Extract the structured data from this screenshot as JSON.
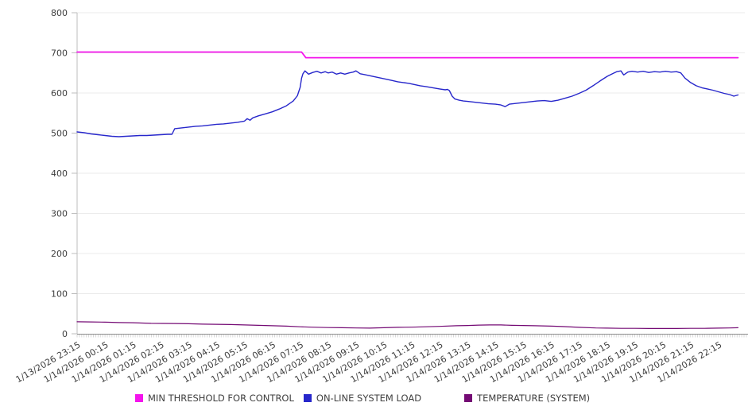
{
  "page": {
    "background": "#ffffff"
  },
  "chart_data": {
    "type": "line",
    "title": "",
    "grid": true,
    "legend_position": "bottom",
    "ylim": [
      0,
      800
    ],
    "y_ticks": [
      0,
      100,
      200,
      300,
      400,
      500,
      600,
      700,
      800
    ],
    "x_axis": {
      "minor_tick_interval_minutes": 5,
      "labels": [
        "1/13/2026 23:15",
        "1/14/2026 00:15",
        "1/14/2026 01:15",
        "1/14/2026 02:15",
        "1/14/2026 03:15",
        "1/14/2026 04:15",
        "1/14/2026 05:15",
        "1/14/2026 06:15",
        "1/14/2026 07:15",
        "1/14/2026 08:15",
        "1/14/2026 09:15",
        "1/14/2026 10:15",
        "1/14/2026 11:15",
        "1/14/2026 12:15",
        "1/14/2026 13:15",
        "1/14/2026 14:15",
        "1/14/2026 15:15",
        "1/14/2026 16:15",
        "1/14/2026 17:15",
        "1/14/2026 18:15",
        "1/14/2026 19:15",
        "1/14/2026 20:15",
        "1/14/2026 21:15",
        "1/14/2026 22:15"
      ]
    },
    "series": [
      {
        "name": "MIN THRESHOLD FOR CONTROL",
        "color": "#f414ec",
        "width": 1.8,
        "points": [
          [
            0,
            702
          ],
          [
            8.05,
            702
          ],
          [
            8.2,
            688
          ],
          [
            23.7,
            688
          ]
        ]
      },
      {
        "name": "ON-LINE SYSTEM LOAD",
        "color": "#2727cb",
        "width": 1.4,
        "points": [
          [
            0,
            503
          ],
          [
            0.25,
            501
          ],
          [
            0.5,
            498
          ],
          [
            0.75,
            496
          ],
          [
            1,
            494
          ],
          [
            1.25,
            492
          ],
          [
            1.5,
            491
          ],
          [
            1.75,
            492
          ],
          [
            2,
            493
          ],
          [
            2.25,
            494
          ],
          [
            2.5,
            494
          ],
          [
            2.75,
            495
          ],
          [
            3,
            496
          ],
          [
            3.25,
            497
          ],
          [
            3.4,
            497
          ],
          [
            3.5,
            511
          ],
          [
            3.75,
            513
          ],
          [
            4,
            515
          ],
          [
            4.25,
            517
          ],
          [
            4.5,
            518
          ],
          [
            4.75,
            520
          ],
          [
            5,
            522
          ],
          [
            5.25,
            523
          ],
          [
            5.5,
            525
          ],
          [
            5.75,
            527
          ],
          [
            6,
            530
          ],
          [
            6.1,
            536
          ],
          [
            6.2,
            532
          ],
          [
            6.3,
            538
          ],
          [
            6.5,
            543
          ],
          [
            6.75,
            548
          ],
          [
            7,
            553
          ],
          [
            7.25,
            560
          ],
          [
            7.5,
            568
          ],
          [
            7.75,
            580
          ],
          [
            7.9,
            593
          ],
          [
            8,
            614
          ],
          [
            8.05,
            637
          ],
          [
            8.1,
            648
          ],
          [
            8.17,
            655
          ],
          [
            8.3,
            647
          ],
          [
            8.45,
            651
          ],
          [
            8.6,
            654
          ],
          [
            8.75,
            650
          ],
          [
            8.9,
            653
          ],
          [
            9,
            650
          ],
          [
            9.15,
            652
          ],
          [
            9.3,
            647
          ],
          [
            9.45,
            650
          ],
          [
            9.6,
            647
          ],
          [
            9.75,
            650
          ],
          [
            9.9,
            652
          ],
          [
            10,
            655
          ],
          [
            10.15,
            648
          ],
          [
            10.3,
            646
          ],
          [
            10.5,
            643
          ],
          [
            10.7,
            640
          ],
          [
            10.9,
            637
          ],
          [
            11.1,
            634
          ],
          [
            11.3,
            631
          ],
          [
            11.5,
            628
          ],
          [
            11.7,
            626
          ],
          [
            11.9,
            624
          ],
          [
            12.1,
            621
          ],
          [
            12.3,
            618
          ],
          [
            12.5,
            616
          ],
          [
            12.75,
            613
          ],
          [
            13,
            610
          ],
          [
            13.2,
            608
          ],
          [
            13.28,
            609
          ],
          [
            13.35,
            606
          ],
          [
            13.45,
            592
          ],
          [
            13.55,
            585
          ],
          [
            13.7,
            582
          ],
          [
            13.85,
            580
          ],
          [
            14,
            579
          ],
          [
            14.25,
            577
          ],
          [
            14.5,
            575
          ],
          [
            14.75,
            573
          ],
          [
            15,
            572
          ],
          [
            15.2,
            570
          ],
          [
            15.35,
            566
          ],
          [
            15.5,
            572
          ],
          [
            15.75,
            574
          ],
          [
            16,
            576
          ],
          [
            16.25,
            578
          ],
          [
            16.5,
            580
          ],
          [
            16.75,
            581
          ],
          [
            17,
            579
          ],
          [
            17.25,
            582
          ],
          [
            17.5,
            587
          ],
          [
            17.75,
            592
          ],
          [
            18,
            599
          ],
          [
            18.25,
            607
          ],
          [
            18.5,
            618
          ],
          [
            18.75,
            630
          ],
          [
            19,
            641
          ],
          [
            19.2,
            648
          ],
          [
            19.35,
            653
          ],
          [
            19.5,
            655
          ],
          [
            19.6,
            645
          ],
          [
            19.75,
            652
          ],
          [
            19.9,
            654
          ],
          [
            20.1,
            652
          ],
          [
            20.3,
            654
          ],
          [
            20.5,
            651
          ],
          [
            20.7,
            653
          ],
          [
            20.9,
            652
          ],
          [
            21.1,
            654
          ],
          [
            21.3,
            652
          ],
          [
            21.5,
            653
          ],
          [
            21.65,
            650
          ],
          [
            21.8,
            637
          ],
          [
            22,
            626
          ],
          [
            22.2,
            618
          ],
          [
            22.4,
            613
          ],
          [
            22.6,
            610
          ],
          [
            22.8,
            607
          ],
          [
            23,
            603
          ],
          [
            23.2,
            599
          ],
          [
            23.4,
            596
          ],
          [
            23.55,
            592
          ],
          [
            23.7,
            595
          ]
        ]
      },
      {
        "name": "TEMPERATURE (SYSTEM)",
        "color": "#740a74",
        "width": 1.2,
        "points": [
          [
            0,
            30
          ],
          [
            0.5,
            29.5
          ],
          [
            1,
            29
          ],
          [
            1.5,
            28
          ],
          [
            2,
            27.5
          ],
          [
            2.65,
            26
          ],
          [
            3.5,
            25.5
          ],
          [
            4,
            25
          ],
          [
            4.5,
            24
          ],
          [
            5,
            23.5
          ],
          [
            5.5,
            23
          ],
          [
            6,
            22
          ],
          [
            6.5,
            21
          ],
          [
            7,
            20
          ],
          [
            7.5,
            19
          ],
          [
            8,
            17.5
          ],
          [
            8.4,
            16.5
          ],
          [
            9,
            15.5
          ],
          [
            9.5,
            15
          ],
          [
            10,
            14.5
          ],
          [
            10.5,
            14
          ],
          [
            11,
            15
          ],
          [
            11.5,
            16
          ],
          [
            12,
            16.5
          ],
          [
            12.5,
            17.5
          ],
          [
            13,
            18.5
          ],
          [
            13.6,
            20
          ],
          [
            14,
            20.5
          ],
          [
            14.4,
            21.5
          ],
          [
            14.8,
            22
          ],
          [
            15.2,
            22
          ],
          [
            15.6,
            21
          ],
          [
            16,
            20.5
          ],
          [
            16.4,
            20
          ],
          [
            17,
            19
          ],
          [
            17.4,
            18
          ],
          [
            18,
            16
          ],
          [
            18.6,
            14.5
          ],
          [
            19,
            14
          ],
          [
            19.5,
            13.5
          ],
          [
            20,
            13.5
          ],
          [
            20.5,
            13
          ],
          [
            21,
            13
          ],
          [
            21.5,
            13
          ],
          [
            22,
            13.5
          ],
          [
            22.5,
            13.5
          ],
          [
            23,
            14
          ],
          [
            23.4,
            14.5
          ],
          [
            23.7,
            15
          ]
        ]
      }
    ],
    "colors": {
      "gridline": "#ebebeb",
      "axis_line": "#8c8c8c",
      "y_axis_line": "#bdbdbd",
      "tick": "#bdbdbd",
      "minor_tick": "#cfcfcf",
      "label_text": "#3d3d3d"
    }
  },
  "legend": {
    "items": [
      {
        "label": "MIN THRESHOLD FOR CONTROL"
      },
      {
        "label": "ON-LINE SYSTEM LOAD"
      },
      {
        "label": "TEMPERATURE (SYSTEM)"
      }
    ]
  }
}
